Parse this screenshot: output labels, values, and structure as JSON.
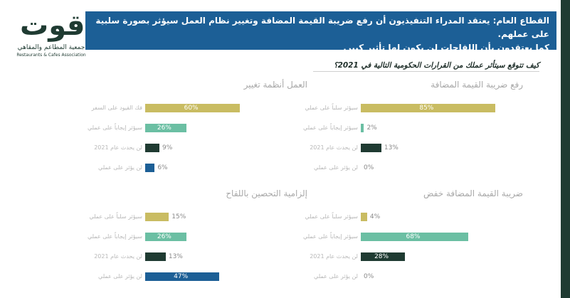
{
  "logo": {
    "main": "قوت",
    "sub_ar": "جمعية المطاعم والمقاهي",
    "sub_en": "Restaurants & Cafes Association"
  },
  "header": {
    "line1": "القطاع العام: يعتقد المدراء التنفيذيون أن رفع ضريبة القيمة المضافة وتغيير نظام العمل سيؤثر بصورة سلبية على عملهم.",
    "line2": "كما يعتقدون بأن اللقاحات لن يكون لها تأثير كبير."
  },
  "question": "كيف تتوقع سيتأثر عملك من القرارات الحكومية التالية في 2021؟",
  "colors": {
    "negative": "#c9bc62",
    "positive": "#6bbfa3",
    "unaffected_2021": "#1f3b32",
    "no_effect": "#1c5f96",
    "header_bg": "#1c5f96"
  },
  "chart_data": [
    {
      "type": "bar",
      "title": "رفع ضريبة القيمة المضافة",
      "categories": [
        "سيؤثر سلباً على عملي",
        "سيؤثر إيجاباً على عملي",
        "لن يحدث عام 2021",
        "لن يؤثر على عملي"
      ],
      "values": [
        85,
        2,
        13,
        0
      ],
      "labels": [
        "85%",
        "2%",
        "13%",
        "0%"
      ]
    },
    {
      "type": "bar",
      "title": "العمل أنظمة تغيير",
      "categories": [
        "فك القيود على السفر",
        "سيؤثر إيجاباً على عملي",
        "لن يحدث عام 2021",
        "لن يؤثر على عملي"
      ],
      "values": [
        60,
        26,
        9,
        6
      ],
      "labels": [
        "60%",
        "26%",
        "9%",
        "6%"
      ]
    },
    {
      "type": "bar",
      "title": "ضريبة القيمة المضافة خفض",
      "categories": [
        "سيؤثر سلباً على عملي",
        "سيؤثر إيجاباً على عملي",
        "لن يحدث عام 2021",
        "لن يؤثر على عملي"
      ],
      "values": [
        4,
        68,
        28,
        0
      ],
      "labels": [
        "4%",
        "68%",
        "28%",
        "0%"
      ]
    },
    {
      "type": "bar",
      "title": "إلزامية التحصين باللقاح",
      "categories": [
        "سيؤثر سلباً على عملي",
        "سيؤثر إيجاباً على عملي",
        "لن يحدث عام 2021",
        "لن يؤثر على عملي"
      ],
      "values": [
        15,
        26,
        13,
        47
      ],
      "labels": [
        "15%",
        "26%",
        "13%",
        "47%"
      ]
    }
  ]
}
